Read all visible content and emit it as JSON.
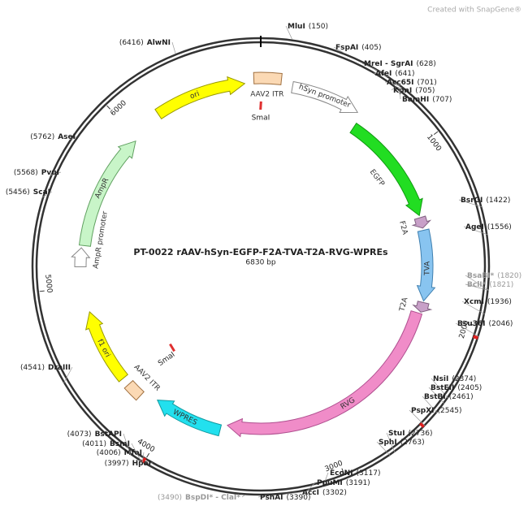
{
  "header": {
    "watermark": "Created with SnapGene®",
    "title": "PT-0022 rAAV-hSyn-EGFP-F2A-TVA-T2A-RVG-WPREs",
    "size": "6830 bp"
  },
  "sites": [
    {
      "name": "MluI",
      "position": "(150)"
    },
    {
      "name": "FspAI",
      "position": "(405)"
    },
    {
      "name": "MreI - SgrAI",
      "position": "(628)"
    },
    {
      "name": "AfeI",
      "position": "(641)"
    },
    {
      "name": "Acc65I",
      "position": "(701)"
    },
    {
      "name": "KpnI",
      "position": "(705)"
    },
    {
      "name": "BamHI",
      "position": "(707)"
    },
    {
      "name": "BsrGI",
      "position": "(1422)"
    },
    {
      "name": "AgeI",
      "position": "(1556)"
    },
    {
      "name": "BsaBI*",
      "position": "(1820)"
    },
    {
      "name": "BclI*",
      "position": "(1821)"
    },
    {
      "name": "XcmI",
      "position": "(1936)"
    },
    {
      "name": "Bsu36I",
      "position": "(2046)"
    },
    {
      "name": "NsiI",
      "position": "(2374)"
    },
    {
      "name": "BstEII",
      "position": "(2405)"
    },
    {
      "name": "BstBI",
      "position": "(2461)"
    },
    {
      "name": "PspXI",
      "position": "(2545)"
    },
    {
      "name": "StuI",
      "position": "(2736)"
    },
    {
      "name": "SphI",
      "position": "(2763)"
    },
    {
      "name": "EcoNI",
      "position": "(3117)"
    },
    {
      "name": "PpuMI",
      "position": "(3191)"
    },
    {
      "name": "AccI",
      "position": "(3302)"
    },
    {
      "name": "PshAI",
      "position": "(3390)"
    },
    {
      "name": "BspDI* - ClaI*",
      "position": "(3490)"
    },
    {
      "name": "HpaI",
      "position": "(3997)"
    },
    {
      "name": "MfeI",
      "position": "(4006)"
    },
    {
      "name": "BsmI",
      "position": "(4011)"
    },
    {
      "name": "BstAPI",
      "position": "(4073)"
    },
    {
      "name": "DraIII",
      "position": "(4541)"
    },
    {
      "name": "ScaI",
      "position": "(5456)"
    },
    {
      "name": "PvuI",
      "position": "(5568)"
    },
    {
      "name": "AseI",
      "position": "(5762)"
    },
    {
      "name": "AlwNI",
      "position": "(6416)"
    }
  ],
  "features": [
    "ori",
    "AAV2 ITR",
    "hSyn promoter",
    "EGFP",
    "F2A",
    "TVA",
    "T2A",
    "RVG",
    "WPRES",
    "AAV2 ITR",
    "f1 ori",
    "AmpR promoter",
    "AmpR"
  ],
  "inner_sites": [
    "SmaI",
    "SmaI"
  ],
  "ruler": [
    "1000",
    "2000",
    "3000",
    "4000",
    "5000",
    "6000"
  ]
}
